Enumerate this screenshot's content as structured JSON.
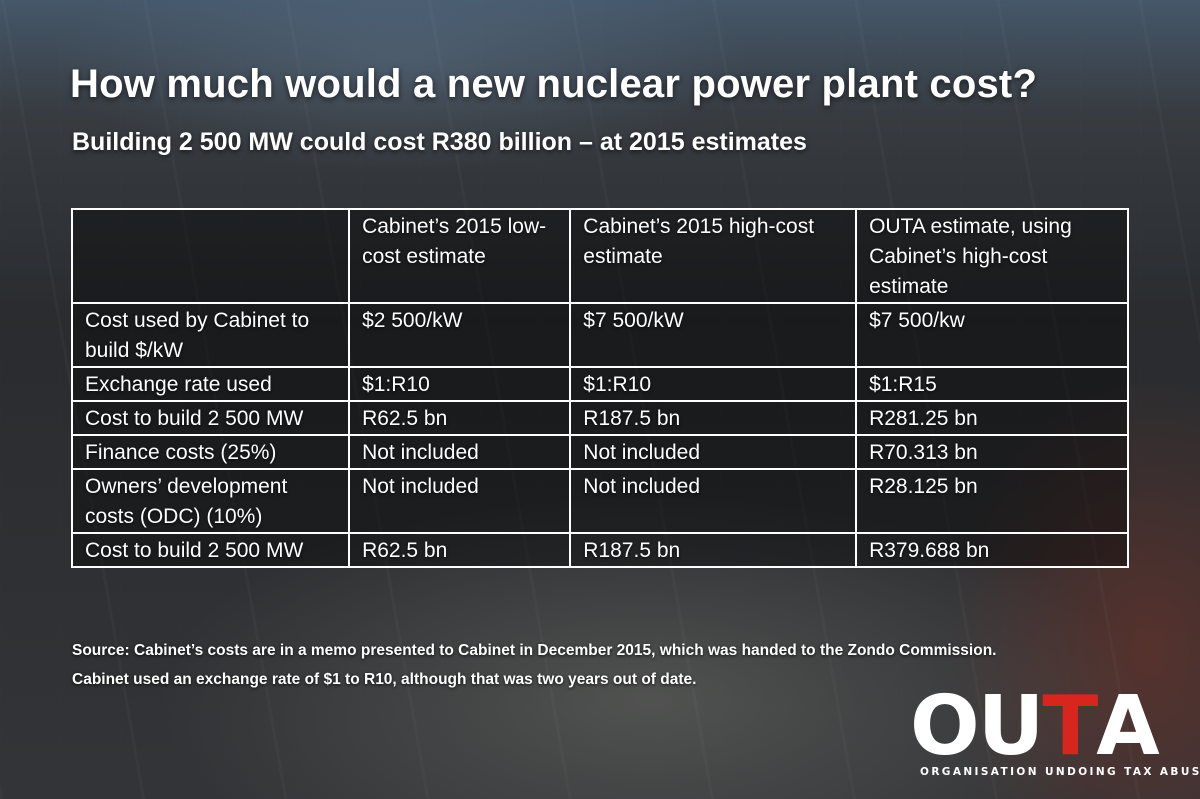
{
  "header": {
    "title": "How much would a new nuclear power plant cost?",
    "subtitle": "Building 2 500 MW could cost R380 billion – at 2015 estimates"
  },
  "table": {
    "columns": [
      "",
      "Cabinet’s 2015 low-cost estimate",
      "Cabinet’s 2015 high-cost estimate",
      "OUTA estimate, using Cabinet’s high-cost estimate"
    ],
    "rows": [
      [
        "Cost used by Cabinet to build $/kW",
        "$2 500/kW",
        "$7 500/kW",
        "$7 500/kw"
      ],
      [
        "Exchange rate used",
        "$1:R10",
        "$1:R10",
        "$1:R15"
      ],
      [
        "Cost to build 2 500 MW",
        "R62.5 bn",
        "R187.5 bn",
        "R281.25 bn"
      ],
      [
        "Finance costs (25%)",
        "Not included",
        "Not included",
        "R70.313 bn"
      ],
      [
        "Owners’ development costs (ODC) (10%)",
        "Not included",
        "Not included",
        "R28.125 bn"
      ],
      [
        "Cost to build 2 500 MW",
        "R62.5 bn",
        "R187.5 bn",
        "R379.688 bn"
      ]
    ]
  },
  "source": {
    "line1": "Source: Cabinet’s costs are in a memo presented to Cabinet in December 2015, which was handed to the Zondo Commission.",
    "line2": "Cabinet used an exchange rate of $1 to R10, although that was two years out of date."
  },
  "logo": {
    "letters": [
      "O",
      "U",
      "T",
      "A"
    ],
    "tagline": "ORGANISATION UNDOING TAX ABUSE",
    "colors": {
      "main": "#ffffff",
      "accent": "#d7261e"
    }
  }
}
